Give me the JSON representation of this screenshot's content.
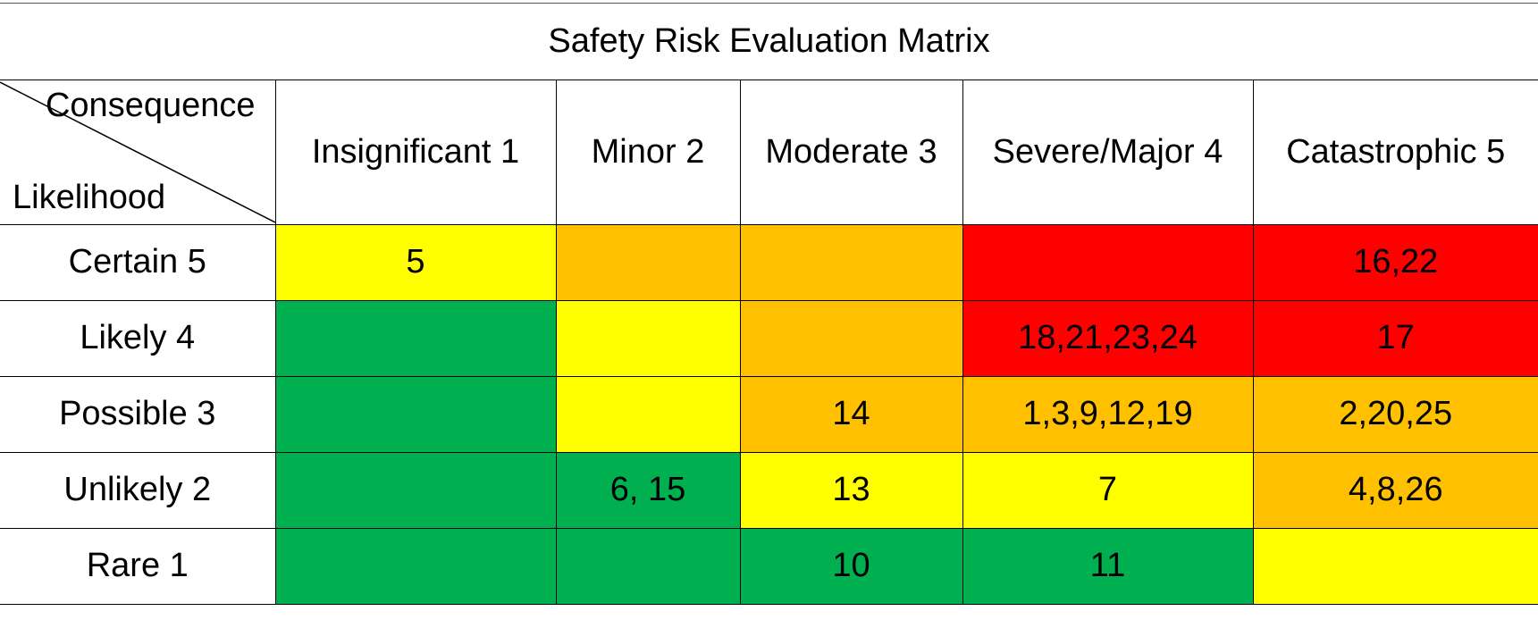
{
  "title": "Safety Risk Evaluation Matrix",
  "corner": {
    "consequence_label": "Consequence",
    "likelihood_label": "Likelihood"
  },
  "consequence_headers": [
    "Insignificant 1",
    "Minor 2",
    "Moderate 3",
    "Severe/Major 4",
    "Catastrophic 5"
  ],
  "colors": {
    "green": "#00b050",
    "yellow": "#ffff00",
    "orange": "#ffc000",
    "red": "#ff0000"
  },
  "rows": [
    {
      "likelihood": "Certain 5",
      "cells": [
        {
          "risk": "yellow",
          "value": "5"
        },
        {
          "risk": "orange",
          "value": ""
        },
        {
          "risk": "orange",
          "value": ""
        },
        {
          "risk": "red",
          "value": ""
        },
        {
          "risk": "red",
          "value": "16,22"
        }
      ]
    },
    {
      "likelihood": "Likely 4",
      "cells": [
        {
          "risk": "green",
          "value": ""
        },
        {
          "risk": "yellow",
          "value": ""
        },
        {
          "risk": "orange",
          "value": ""
        },
        {
          "risk": "red",
          "value": "18,21,23,24"
        },
        {
          "risk": "red",
          "value": "17"
        }
      ]
    },
    {
      "likelihood": "Possible 3",
      "cells": [
        {
          "risk": "green",
          "value": ""
        },
        {
          "risk": "yellow",
          "value": ""
        },
        {
          "risk": "orange",
          "value": "14"
        },
        {
          "risk": "orange",
          "value": "1,3,9,12,19"
        },
        {
          "risk": "orange",
          "value": "2,20,25"
        }
      ]
    },
    {
      "likelihood": "Unlikely 2",
      "cells": [
        {
          "risk": "green",
          "value": ""
        },
        {
          "risk": "green",
          "value": "6, 15"
        },
        {
          "risk": "yellow",
          "value": "13"
        },
        {
          "risk": "yellow",
          "value": "7"
        },
        {
          "risk": "orange",
          "value": "4,8,26"
        }
      ]
    },
    {
      "likelihood": "Rare 1",
      "cells": [
        {
          "risk": "green",
          "value": ""
        },
        {
          "risk": "green",
          "value": ""
        },
        {
          "risk": "green",
          "value": "10"
        },
        {
          "risk": "green",
          "value": "11"
        },
        {
          "risk": "yellow",
          "value": ""
        }
      ]
    }
  ]
}
